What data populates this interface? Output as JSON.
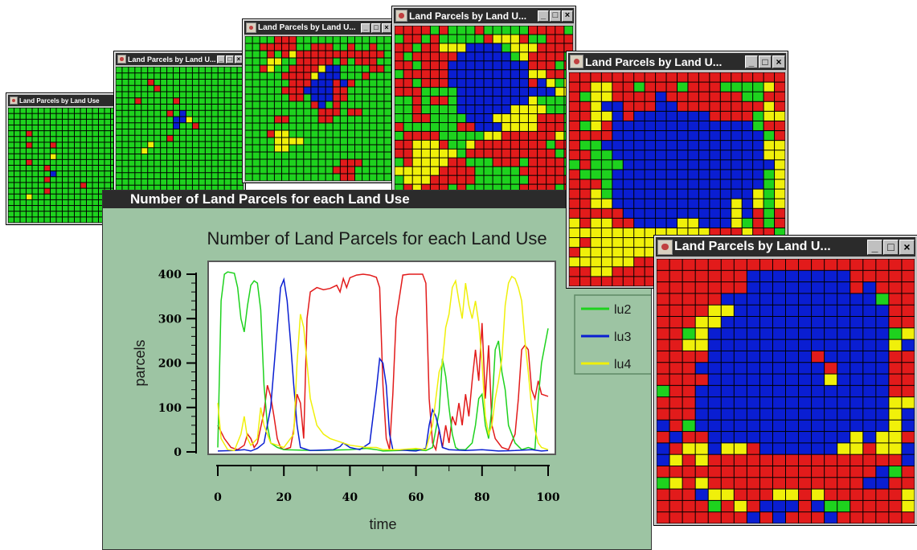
{
  "colors": {
    "lu1": "#e21b1b",
    "lu2": "#1ed21e",
    "lu3": "#0a1ed2",
    "lu4": "#f0f00a"
  },
  "palette_codes": "0 = lu1 red, 1 = lu2 green, 2 = lu3 blue, 3 = lu4 yellow",
  "grid_windows": [
    {
      "title": "Land Parcels by Land Use",
      "rows": [
        "11111111111111111111",
        "11111111111111111111",
        "11111111111111111111",
        "11111111111111111111",
        "11101111111111111111",
        "11111111111111111111",
        "11101110111111111111",
        "11111111111111111111",
        "11111113111111111111",
        "11101111111111111111",
        "11111101111111111111",
        "11111112111111111111",
        "11111101111111111111",
        "11111111111101111111",
        "11111101111111111111",
        "11131111111111111111",
        "11111111111111111111",
        "11111111111111111111",
        "11111111111111111111",
        "11111111111111111111"
      ]
    },
    {
      "title": "Land Parcels by Land U...",
      "rows": [
        "11111111111111111111",
        "11111111111111111111",
        "11111011111111111111",
        "11111101111111111111",
        "11111111111111111111",
        "11101111101111111111",
        "11111111111111111111",
        "11111111012111111111",
        "11111111122311111111",
        "11111111121101111111",
        "11111111111111111111",
        "11111111011111111111",
        "11111311111111111111",
        "11113111111111111111",
        "11111111111111111111",
        "11111111111111111111",
        "11111111111111111111",
        "11111111111111111111",
        "11111111111111111111",
        "11111111111111111111"
      ]
    },
    {
      "title": "Land Parcels by Land U...",
      "rows": [
        "11110001111111111111",
        "11000001100011011011",
        "11101030000000000001",
        "11133110000010100011",
        "11031100003221111001",
        "11111000032221110111",
        "11111100022202011111",
        "11111000222200111111",
        "11111100122200111111",
        "11111111102101111111",
        "11111111110001001111",
        "11110011110011111111",
        "11111111111111111111",
        "11103311111111111111",
        "11113333111111111111",
        "11113311111111111111",
        "11111111111111111111",
        "11111111111110001111",
        "11111111111100011111",
        "11111111111110011111"
      ]
    },
    {
      "title": "Land Parcels by Land U...",
      "rows": [
        "00001011101111100001",
        "10010111110333011000",
        "00100333222213330000",
        "01000002222221300001",
        "00100022222222200010",
        "10000022222222233001",
        "00100022222222202313",
        "00011112222222222233",
        "11010012222222231111",
        "11011112222223333111",
        "11001111222333330001",
        "01111110022233330001",
        "10000111113300000031",
        "00333011300000000100",
        "00333331000000000010",
        "10333300111000100001",
        "33333000011111000001",
        "13330000011111100000",
        "10300010111111000010",
        "10000011011111100100"
      ]
    },
    {
      "title": "Land Parcels by Land U...",
      "rows": [
        "00000000000000000000",
        "00330010001000111130",
        "01330000200000001100",
        "00322000220000000030",
        "00332022222220000133",
        "01302222222222222100",
        "00002222222222222210",
        "01122222222222222233",
        "00112222222222222233",
        "10111222222222222223",
        "01112222222222222213",
        "00012222222222222213",
        "00312222222222222313",
        "00332222222222232313",
        "00000222222222232010",
        "30330022223322231010",
        "33333333333330003001",
        "30333333333330000013",
        "03333333000033300000",
        "33333300000003330130",
        "00330000000000000000",
        "00000000000000000000"
      ]
    },
    {
      "title": "Land Parcels by Land U...",
      "rows": [
        "00000000000000000000",
        "00000002222222200000",
        "00000002222222202000",
        "00000222222222222100",
        "00003322222222222200",
        "00033222222222222200",
        "00132222222222222213",
        "00332222222222222232",
        "00002222222202222200",
        "00022222222220222200",
        "00002222222223222200",
        "10022222222222222200",
        "00022222222222222233",
        "00022222222222222232",
        "20122222222222222232",
        "02002222222222232330",
        "20332330222222330332",
        "23030000000000000002",
        "00000000000000000210",
        "13030000000000002200",
        "00023300033030000003",
        "00001030222021100003",
        "00000002020002000000"
      ]
    }
  ],
  "chart_window": {
    "title_bar": "Number of Land Parcels for each Land Use"
  },
  "chart_data": {
    "type": "line",
    "title": "Number of Land Parcels for each Land Use",
    "xlabel": "time",
    "ylabel": "parcels",
    "xlim": [
      0,
      100
    ],
    "ylim": [
      0,
      400
    ],
    "x_ticks": [
      "0",
      "20",
      "40",
      "60",
      "80",
      "100"
    ],
    "y_ticks": [
      "0",
      "100",
      "200",
      "300",
      "400"
    ],
    "legend_position": "right",
    "series": [
      {
        "name": "lu1",
        "color": "#e21b1b",
        "points": [
          [
            0,
            60
          ],
          [
            2,
            30
          ],
          [
            4,
            10
          ],
          [
            6,
            5
          ],
          [
            8,
            15
          ],
          [
            9,
            40
          ],
          [
            10,
            30
          ],
          [
            11,
            10
          ],
          [
            12,
            20
          ],
          [
            14,
            90
          ],
          [
            15,
            150
          ],
          [
            16,
            125
          ],
          [
            17,
            80
          ],
          [
            18,
            30
          ],
          [
            19,
            10
          ],
          [
            20,
            5
          ],
          [
            22,
            10
          ],
          [
            23,
            50
          ],
          [
            24,
            130
          ],
          [
            25,
            110
          ],
          [
            26,
            30
          ],
          [
            27,
            300
          ],
          [
            28,
            360
          ],
          [
            30,
            370
          ],
          [
            32,
            365
          ],
          [
            34,
            368
          ],
          [
            36,
            375
          ],
          [
            37,
            360
          ],
          [
            38,
            390
          ],
          [
            39,
            370
          ],
          [
            40,
            392
          ],
          [
            42,
            398
          ],
          [
            44,
            400
          ],
          [
            46,
            398
          ],
          [
            48,
            393
          ],
          [
            49,
            370
          ],
          [
            50,
            150
          ],
          [
            51,
            30
          ],
          [
            52,
            5
          ],
          [
            53,
            130
          ],
          [
            54,
            300
          ],
          [
            56,
            398
          ],
          [
            58,
            400
          ],
          [
            62,
            400
          ],
          [
            63,
            380
          ],
          [
            64,
            120
          ],
          [
            65,
            20
          ],
          [
            66,
            5
          ],
          [
            67,
            50
          ],
          [
            68,
            10
          ],
          [
            69,
            60
          ],
          [
            70,
            20
          ],
          [
            71,
            80
          ],
          [
            72,
            60
          ],
          [
            73,
            110
          ],
          [
            74,
            60
          ],
          [
            75,
            130
          ],
          [
            76,
            80
          ],
          [
            77,
            160
          ],
          [
            78,
            230
          ],
          [
            79,
            160
          ],
          [
            80,
            290
          ],
          [
            81,
            120
          ],
          [
            82,
            240
          ],
          [
            83,
            60
          ],
          [
            84,
            30
          ],
          [
            86,
            10
          ],
          [
            88,
            5
          ],
          [
            90,
            40
          ],
          [
            91,
            120
          ],
          [
            92,
            230
          ],
          [
            93,
            240
          ],
          [
            94,
            230
          ],
          [
            95,
            140
          ],
          [
            96,
            120
          ],
          [
            97,
            160
          ],
          [
            98,
            130
          ],
          [
            100,
            125
          ]
        ]
      },
      {
        "name": "lu2",
        "color": "#1ed21e",
        "points": [
          [
            0,
            10
          ],
          [
            1,
            340
          ],
          [
            2,
            400
          ],
          [
            3,
            405
          ],
          [
            5,
            402
          ],
          [
            6,
            370
          ],
          [
            7,
            300
          ],
          [
            8,
            270
          ],
          [
            9,
            330
          ],
          [
            10,
            375
          ],
          [
            11,
            385
          ],
          [
            12,
            380
          ],
          [
            13,
            320
          ],
          [
            14,
            150
          ],
          [
            15,
            60
          ],
          [
            16,
            20
          ],
          [
            18,
            10
          ],
          [
            20,
            5
          ],
          [
            30,
            3
          ],
          [
            40,
            5
          ],
          [
            45,
            8
          ],
          [
            48,
            5
          ],
          [
            50,
            2
          ],
          [
            55,
            3
          ],
          [
            60,
            5
          ],
          [
            63,
            3
          ],
          [
            65,
            10
          ],
          [
            66,
            50
          ],
          [
            67,
            90
          ],
          [
            68,
            210
          ],
          [
            69,
            170
          ],
          [
            70,
            100
          ],
          [
            71,
            40
          ],
          [
            72,
            10
          ],
          [
            73,
            5
          ],
          [
            75,
            5
          ],
          [
            77,
            20
          ],
          [
            78,
            60
          ],
          [
            79,
            120
          ],
          [
            80,
            130
          ],
          [
            81,
            60
          ],
          [
            82,
            30
          ],
          [
            83,
            100
          ],
          [
            84,
            230
          ],
          [
            85,
            250
          ],
          [
            86,
            180
          ],
          [
            87,
            140
          ],
          [
            88,
            60
          ],
          [
            90,
            20
          ],
          [
            92,
            5
          ],
          [
            94,
            10
          ],
          [
            96,
            5
          ],
          [
            97,
            120
          ],
          [
            98,
            200
          ],
          [
            100,
            278
          ]
        ]
      },
      {
        "name": "lu3",
        "color": "#0a1ed2",
        "points": [
          [
            0,
            2
          ],
          [
            5,
            3
          ],
          [
            8,
            5
          ],
          [
            10,
            2
          ],
          [
            12,
            8
          ],
          [
            14,
            20
          ],
          [
            16,
            100
          ],
          [
            18,
            280
          ],
          [
            19,
            370
          ],
          [
            20,
            388
          ],
          [
            21,
            340
          ],
          [
            22,
            250
          ],
          [
            23,
            150
          ],
          [
            24,
            60
          ],
          [
            25,
            10
          ],
          [
            28,
            3
          ],
          [
            35,
            5
          ],
          [
            37,
            12
          ],
          [
            38,
            20
          ],
          [
            40,
            10
          ],
          [
            43,
            5
          ],
          [
            46,
            20
          ],
          [
            48,
            140
          ],
          [
            49,
            210
          ],
          [
            50,
            200
          ],
          [
            51,
            150
          ],
          [
            52,
            40
          ],
          [
            53,
            5
          ],
          [
            60,
            2
          ],
          [
            63,
            8
          ],
          [
            64,
            60
          ],
          [
            65,
            95
          ],
          [
            66,
            80
          ],
          [
            67,
            50
          ],
          [
            68,
            10
          ],
          [
            70,
            5
          ],
          [
            75,
            3
          ],
          [
            80,
            5
          ],
          [
            85,
            2
          ],
          [
            90,
            3
          ],
          [
            95,
            5
          ],
          [
            98,
            2
          ],
          [
            100,
            3
          ]
        ]
      },
      {
        "name": "lu4",
        "color": "#f0f00a",
        "points": [
          [
            0,
            110
          ],
          [
            1,
            30
          ],
          [
            3,
            5
          ],
          [
            5,
            3
          ],
          [
            7,
            40
          ],
          [
            8,
            80
          ],
          [
            9,
            30
          ],
          [
            10,
            15
          ],
          [
            12,
            30
          ],
          [
            13,
            100
          ],
          [
            14,
            60
          ],
          [
            16,
            20
          ],
          [
            20,
            10
          ],
          [
            23,
            40
          ],
          [
            24,
            200
          ],
          [
            25,
            310
          ],
          [
            26,
            280
          ],
          [
            27,
            200
          ],
          [
            28,
            120
          ],
          [
            30,
            60
          ],
          [
            32,
            40
          ],
          [
            34,
            30
          ],
          [
            36,
            25
          ],
          [
            40,
            15
          ],
          [
            45,
            10
          ],
          [
            48,
            10
          ],
          [
            50,
            5
          ],
          [
            55,
            5
          ],
          [
            60,
            8
          ],
          [
            63,
            5
          ],
          [
            65,
            60
          ],
          [
            66,
            120
          ],
          [
            67,
            180
          ],
          [
            68,
            200
          ],
          [
            69,
            280
          ],
          [
            70,
            310
          ],
          [
            71,
            370
          ],
          [
            72,
            385
          ],
          [
            73,
            340
          ],
          [
            74,
            300
          ],
          [
            75,
            380
          ],
          [
            76,
            330
          ],
          [
            77,
            300
          ],
          [
            78,
            340
          ],
          [
            79,
            290
          ],
          [
            80,
            200
          ],
          [
            81,
            80
          ],
          [
            82,
            40
          ],
          [
            83,
            60
          ],
          [
            84,
            120
          ],
          [
            85,
            160
          ],
          [
            86,
            210
          ],
          [
            87,
            330
          ],
          [
            88,
            380
          ],
          [
            89,
            395
          ],
          [
            90,
            390
          ],
          [
            91,
            370
          ],
          [
            92,
            340
          ],
          [
            93,
            250
          ],
          [
            94,
            180
          ],
          [
            95,
            100
          ],
          [
            96,
            50
          ],
          [
            97,
            20
          ],
          [
            98,
            10
          ],
          [
            100,
            5
          ]
        ]
      }
    ]
  }
}
